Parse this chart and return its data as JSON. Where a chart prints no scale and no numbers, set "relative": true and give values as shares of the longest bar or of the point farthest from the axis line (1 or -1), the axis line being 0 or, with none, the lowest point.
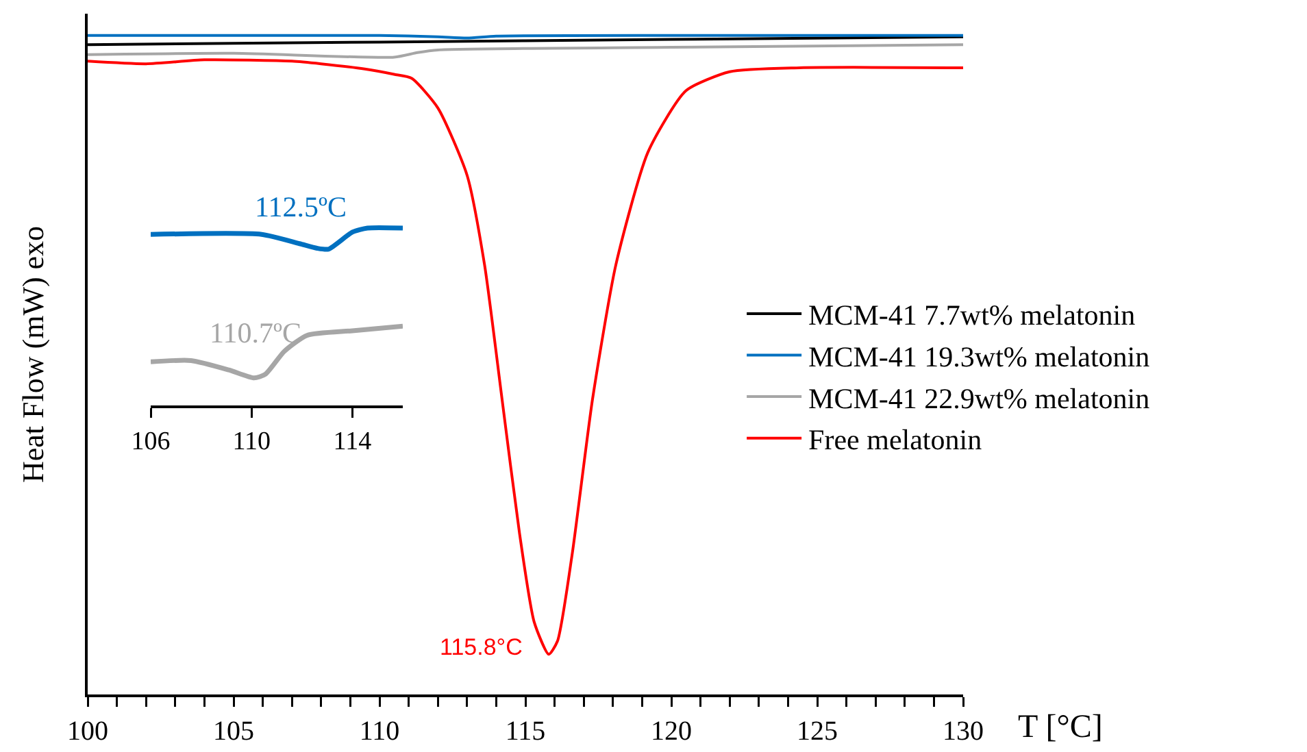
{
  "chart_data": [
    {
      "type": "line",
      "relative": true,
      "xlabel": "T [°C]",
      "ylabel": "Heat Flow (mW) exo",
      "xlim": [
        100,
        130
      ],
      "xticks": [
        100,
        {
          "value": 101,
          "label": null
        },
        {
          "value": 102,
          "label": null
        },
        {
          "value": 103,
          "label": null
        },
        {
          "value": 104,
          "label": null
        },
        105,
        {
          "value": 106,
          "label": null
        },
        {
          "value": 107,
          "label": null
        },
        {
          "value": 108,
          "label": null
        },
        {
          "value": 109,
          "label": null
        },
        110,
        {
          "value": 111,
          "label": null
        },
        {
          "value": 112,
          "label": null
        },
        {
          "value": 113,
          "label": null
        },
        {
          "value": 114,
          "label": null
        },
        115,
        {
          "value": 116,
          "label": null
        },
        {
          "value": 117,
          "label": null
        },
        {
          "value": 118,
          "label": null
        },
        {
          "value": 119,
          "label": null
        },
        120,
        {
          "value": 121,
          "label": null
        },
        {
          "value": 122,
          "label": null
        },
        {
          "value": 123,
          "label": null
        },
        {
          "value": 124,
          "label": null
        },
        125,
        {
          "value": 126,
          "label": null
        },
        {
          "value": 127,
          "label": null
        },
        {
          "value": 128,
          "label": null
        },
        {
          "value": 129,
          "label": null
        },
        130
      ],
      "legend": "right",
      "series": [
        {
          "name": "MCM-41 7.7wt% melatonin",
          "color": "#000000",
          "x": [
            100,
            110,
            120,
            130
          ],
          "values": [
            0.986,
            0.99,
            0.994,
            0.998
          ]
        },
        {
          "name": "MCM-41 19.3wt% melatonin",
          "color": "#0070c0",
          "x": [
            100,
            110,
            112,
            113,
            114,
            120,
            130
          ],
          "values": [
            1.0,
            1.0,
            0.998,
            0.996,
            0.999,
            1.0,
            1.0
          ]
        },
        {
          "name": "MCM-41 22.9wt% melatonin",
          "color": "#a6a6a6",
          "x": [
            100,
            105,
            110.5,
            111.3,
            112,
            120,
            130
          ],
          "values": [
            0.971,
            0.973,
            0.967,
            0.974,
            0.978,
            0.982,
            0.986
          ]
        },
        {
          "name": "Free melatonin",
          "color": "#ff0000",
          "x": [
            100,
            102,
            104,
            107,
            108,
            109.5,
            110.5,
            111.1,
            112,
            113,
            113.6,
            114.2,
            114.8,
            115.3,
            115.8,
            116.1,
            116.6,
            117.3,
            118.1,
            119.2,
            120.5,
            122,
            124.4,
            130
          ],
          "values": [
            0.961,
            0.957,
            0.963,
            0.961,
            0.957,
            0.949,
            0.941,
            0.935,
            0.89,
            0.788,
            0.652,
            0.448,
            0.244,
            0.11,
            0.061,
            0.081,
            0.212,
            0.448,
            0.652,
            0.823,
            0.916,
            0.945,
            0.951,
            0.951
          ]
        }
      ],
      "annotations": [
        {
          "text": "115.8°C",
          "x": 115.8,
          "y": 0.061
        }
      ]
    },
    {
      "type": "line",
      "relative": true,
      "xlim": [
        106,
        116
      ],
      "xticks": [
        106,
        110,
        114
      ],
      "tick_labels": "x",
      "series": [
        {
          "color": "#0070c0",
          "x": [
            106,
            110.4,
            111.9,
            112.6,
            113.05,
            114,
            114.6,
            116
          ],
          "values": [
            0.964,
            0.964,
            0.912,
            0.886,
            0.881,
            0.977,
            1.0,
            1.0
          ]
        },
        {
          "color": "#a6a6a6",
          "x": [
            106,
            107.6,
            109.1,
            110.1,
            110.55,
            111.3,
            112.2,
            114,
            116
          ],
          "values": [
            0.246,
            0.253,
            0.2,
            0.155,
            0.176,
            0.305,
            0.395,
            0.421,
            0.447
          ]
        }
      ],
      "annotations": [
        {
          "text": "112.5ºC",
          "x": 112.5,
          "y": 0.886
        },
        {
          "text": "110.7ºC",
          "x": 110.7,
          "y": 0.176
        }
      ]
    }
  ]
}
